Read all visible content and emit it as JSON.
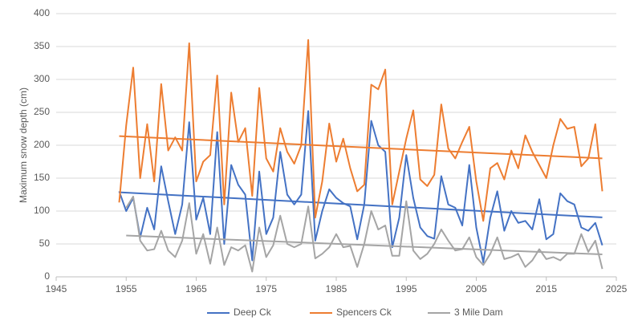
{
  "chart_data": {
    "type": "line",
    "y_label": "Maximum snow depth (cm)",
    "x": [
      1954,
      1955,
      1956,
      1957,
      1958,
      1959,
      1960,
      1961,
      1962,
      1963,
      1964,
      1965,
      1966,
      1967,
      1968,
      1969,
      1970,
      1971,
      1972,
      1973,
      1974,
      1975,
      1976,
      1977,
      1978,
      1979,
      1980,
      1981,
      1982,
      1983,
      1984,
      1985,
      1986,
      1987,
      1988,
      1989,
      1990,
      1991,
      1992,
      1993,
      1994,
      1995,
      1996,
      1997,
      1998,
      1999,
      2000,
      2001,
      2002,
      2003,
      2004,
      2005,
      2006,
      2007,
      2008,
      2009,
      2010,
      2011,
      2012,
      2013,
      2014,
      2015,
      2016,
      2017,
      2018,
      2019,
      2020,
      2021,
      2022,
      2023
    ],
    "series": [
      {
        "name": "Deep Ck",
        "color": "#4472c4",
        "values": [
          130,
          100,
          120,
          60,
          105,
          72,
          168,
          115,
          65,
          110,
          235,
          87,
          120,
          65,
          220,
          50,
          170,
          140,
          125,
          25,
          160,
          65,
          90,
          190,
          125,
          110,
          125,
          252,
          55,
          100,
          133,
          120,
          112,
          107,
          57,
          110,
          237,
          200,
          190,
          45,
          90,
          185,
          120,
          75,
          62,
          58,
          153,
          110,
          105,
          78,
          170,
          75,
          22,
          90,
          130,
          70,
          100,
          82,
          85,
          72,
          118,
          57,
          65,
          127,
          115,
          110,
          75,
          70,
          82,
          48
        ]
      },
      {
        "name": "Spencers Ck",
        "color": "#ed7d31",
        "values": [
          113,
          230,
          318,
          150,
          232,
          145,
          293,
          192,
          212,
          192,
          355,
          145,
          175,
          185,
          306,
          110,
          280,
          205,
          226,
          123,
          287,
          180,
          160,
          226,
          190,
          172,
          200,
          360,
          90,
          145,
          233,
          175,
          210,
          165,
          130,
          140,
          292,
          285,
          315,
          110,
          160,
          210,
          253,
          148,
          138,
          155,
          262,
          195,
          180,
          205,
          228,
          145,
          85,
          165,
          173,
          148,
          192,
          165,
          215,
          190,
          170,
          150,
          200,
          240,
          225,
          228,
          168,
          180,
          232,
          130
        ]
      },
      {
        "name": "3 Mile Dam",
        "color": "#a5a5a5",
        "values": [
          null,
          105,
          122,
          55,
          40,
          42,
          70,
          40,
          30,
          55,
          112,
          35,
          65,
          20,
          75,
          18,
          45,
          40,
          48,
          8,
          75,
          30,
          48,
          93,
          50,
          45,
          50,
          107,
          28,
          35,
          45,
          65,
          45,
          47,
          15,
          50,
          100,
          72,
          78,
          32,
          32,
          115,
          40,
          27,
          35,
          50,
          72,
          55,
          40,
          42,
          60,
          30,
          18,
          35,
          60,
          27,
          30,
          35,
          15,
          25,
          42,
          27,
          30,
          25,
          35,
          35,
          65,
          38,
          55,
          12
        ]
      }
    ],
    "xlim": [
      1945,
      2025
    ],
    "xticks": [
      1945,
      1955,
      1965,
      1975,
      1985,
      1995,
      2005,
      2015,
      2025
    ],
    "ylim": [
      0,
      400
    ],
    "yticks": [
      0,
      50,
      100,
      150,
      200,
      250,
      300,
      350,
      400
    ],
    "grid": true,
    "trendline": true,
    "legend": "bottom"
  }
}
